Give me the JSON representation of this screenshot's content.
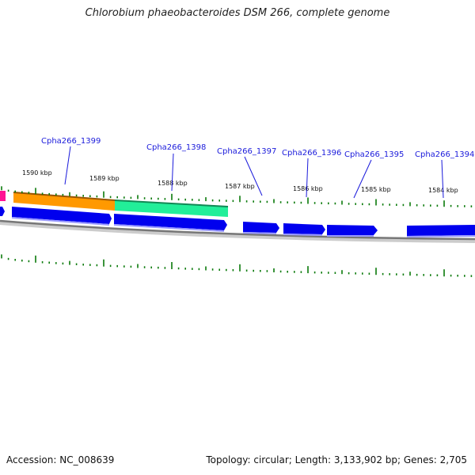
{
  "title": "Chlorobium phaeobacteroides DSM 266, complete genome",
  "footer": {
    "accession": "Accession: NC_008639",
    "summary": "Topology: circular; Length: 3,133,902 bp; Genes: 2,705"
  },
  "colors": {
    "gene_blue": "#0000ee",
    "orange_feature": "#ff9900",
    "green_feature": "#22ee99",
    "magenta_feature": "#ff1493",
    "tick_green": "#0a7a0a",
    "backbone": "#888888",
    "label_blue": "#1a1adb"
  },
  "gene_labels": [
    {
      "text": "Cpha266_1399"
    },
    {
      "text": "Cpha266_1398"
    },
    {
      "text": "Cpha266_1397"
    },
    {
      "text": "Cpha266_1396"
    },
    {
      "text": "Cpha266_1395"
    },
    {
      "text": "Cpha266_1394"
    }
  ],
  "scale_labels": [
    {
      "text": "1590 kbp"
    },
    {
      "text": "1589 kbp"
    },
    {
      "text": "1588 kbp"
    },
    {
      "text": "1587 kbp"
    },
    {
      "text": "1586 kbp"
    },
    {
      "text": "1585 kbp"
    },
    {
      "text": "1584 kbp"
    }
  ]
}
